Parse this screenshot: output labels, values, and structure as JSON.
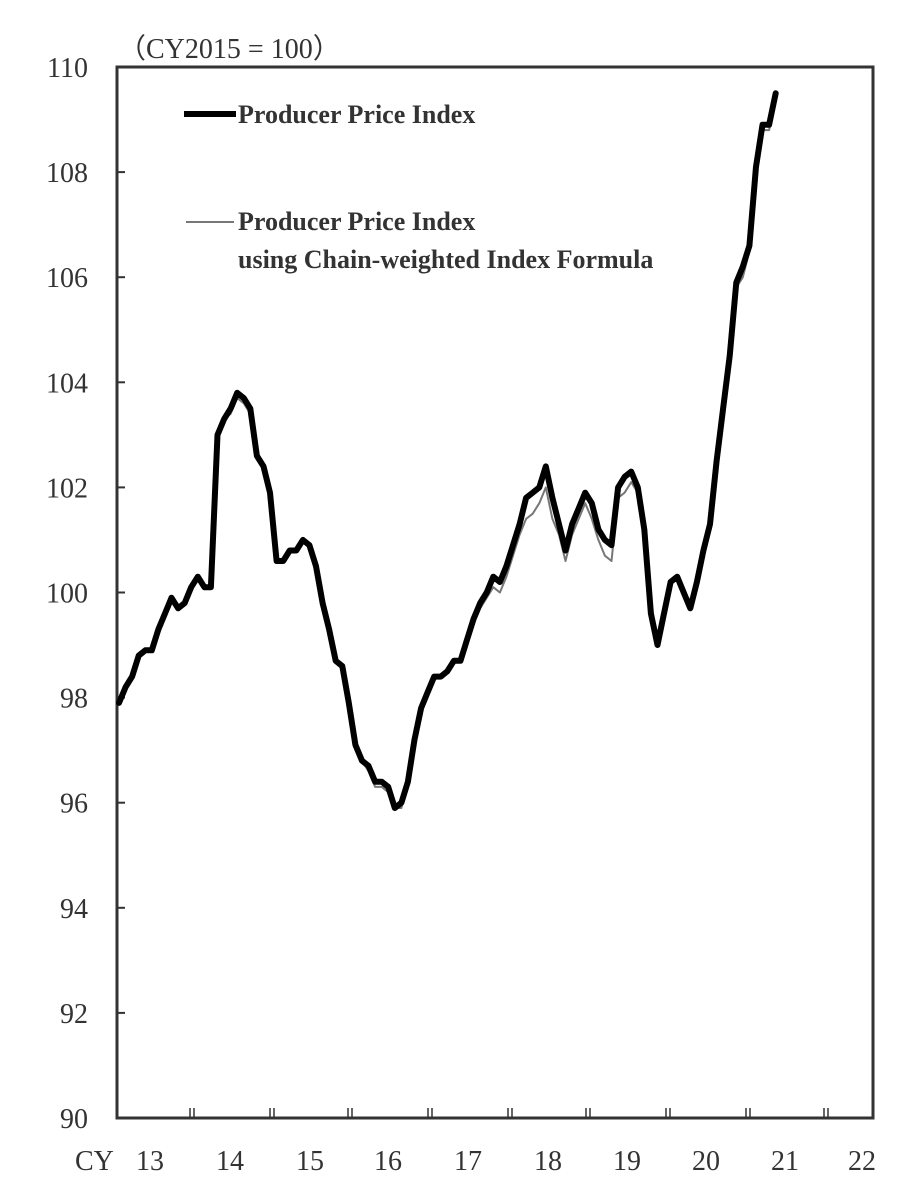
{
  "chart_data": {
    "type": "line",
    "title": "",
    "unit_label": "（CY2015 = 100）",
    "xlabel": "CY",
    "ylabel": "",
    "ylim": [
      90,
      110
    ],
    "yticks": [
      90,
      92,
      94,
      96,
      98,
      100,
      102,
      104,
      106,
      108,
      110
    ],
    "xtick_labels": [
      "13",
      "14",
      "15",
      "16",
      "17",
      "18",
      "19",
      "20",
      "21",
      "22"
    ],
    "x_prefix": "CY",
    "grid": false,
    "legend_position": "top-left inside",
    "legend": [
      {
        "label": "Producer Price Index",
        "style": "thick black"
      },
      {
        "label": "Producer Price Index\nusing Chain-weighted Index Formula",
        "style": "thin gray"
      }
    ],
    "x_start": "2013-01",
    "frequency": "monthly",
    "series": [
      {
        "name": "Producer Price Index",
        "values": [
          97.9,
          98.2,
          98.4,
          98.8,
          98.9,
          98.9,
          99.3,
          99.6,
          99.9,
          99.7,
          99.8,
          100.1,
          100.3,
          100.1,
          100.1,
          103.0,
          103.3,
          103.5,
          103.8,
          103.7,
          103.5,
          102.6,
          102.4,
          101.9,
          100.6,
          100.6,
          100.8,
          100.8,
          101.0,
          100.9,
          100.5,
          99.8,
          99.3,
          98.7,
          98.6,
          97.9,
          97.1,
          96.8,
          96.7,
          96.4,
          96.4,
          96.3,
          95.9,
          96.0,
          96.4,
          97.2,
          97.8,
          98.1,
          98.4,
          98.4,
          98.5,
          98.7,
          98.7,
          99.1,
          99.5,
          99.8,
          100.0,
          100.3,
          100.2,
          100.5,
          100.9,
          101.3,
          101.8,
          101.9,
          102.0,
          102.4,
          101.8,
          101.3,
          100.8,
          101.3,
          101.6,
          101.9,
          101.7,
          101.2,
          101.0,
          100.9,
          102.0,
          102.2,
          102.3,
          102.0,
          101.2,
          99.6,
          99.0,
          99.6,
          100.2,
          100.3,
          100.0,
          99.7,
          100.2,
          100.8,
          101.3,
          102.5,
          103.5,
          104.5,
          105.9,
          106.2,
          106.6,
          108.1,
          108.9,
          108.9,
          109.5
        ]
      },
      {
        "name": "Producer Price Index using Chain-weighted Index Formula",
        "values": [
          97.9,
          98.2,
          98.4,
          98.8,
          98.9,
          98.9,
          99.3,
          99.6,
          99.9,
          99.7,
          99.8,
          100.1,
          100.3,
          100.1,
          100.1,
          103.0,
          103.3,
          103.4,
          103.7,
          103.6,
          103.4,
          102.6,
          102.4,
          101.9,
          100.6,
          100.6,
          100.8,
          100.8,
          101.0,
          100.9,
          100.5,
          99.8,
          99.3,
          98.7,
          98.6,
          97.9,
          97.1,
          96.8,
          96.6,
          96.3,
          96.3,
          96.2,
          95.9,
          95.9,
          96.4,
          97.2,
          97.8,
          98.1,
          98.4,
          98.4,
          98.5,
          98.7,
          98.7,
          99.0,
          99.4,
          99.7,
          99.9,
          100.1,
          100.0,
          100.3,
          100.7,
          101.1,
          101.4,
          101.5,
          101.7,
          102.0,
          101.4,
          101.1,
          100.6,
          101.1,
          101.4,
          101.7,
          101.4,
          101.0,
          100.7,
          100.6,
          101.8,
          101.9,
          102.1,
          101.9,
          101.1,
          99.6,
          99.0,
          99.6,
          100.2,
          100.3,
          100.0,
          99.7,
          100.2,
          100.8,
          101.3,
          102.5,
          103.4,
          104.4,
          105.8,
          106.0,
          106.5,
          108.0,
          108.8,
          108.8,
          109.4
        ]
      }
    ]
  }
}
